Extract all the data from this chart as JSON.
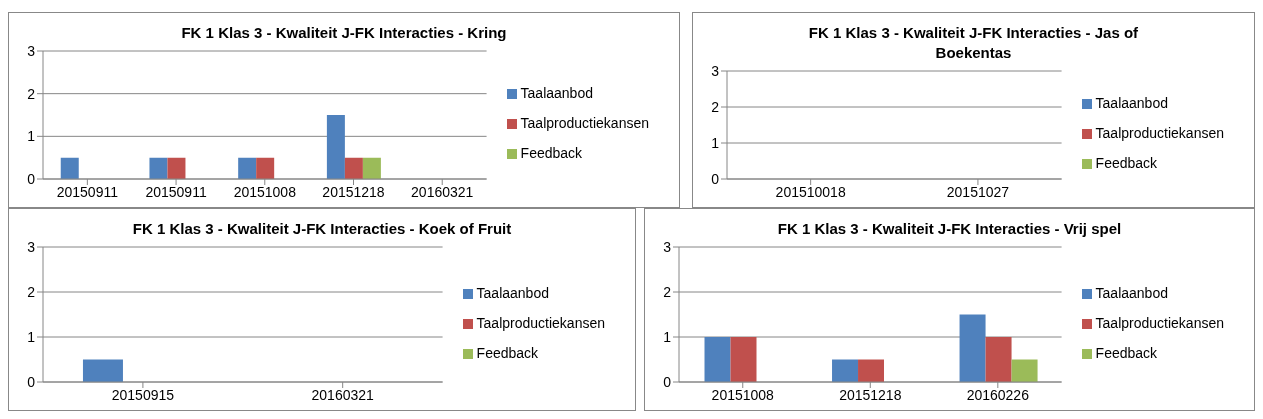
{
  "chart_data": [
    {
      "type": "bar",
      "title": "FK 1 Klas 3 - Kwaliteit J-FK Interacties - Kring",
      "categories": [
        "20150911",
        "20150911",
        "20151008",
        "20151218",
        "20160321"
      ],
      "series": [
        {
          "name": "Taalaanbod",
          "color": "#4f81bd",
          "values": [
            0.5,
            0.5,
            0.5,
            1.5,
            0
          ]
        },
        {
          "name": "Taalproductiekansen",
          "color": "#c0504d",
          "values": [
            0,
            0.5,
            0.5,
            0.5,
            0
          ]
        },
        {
          "name": "Feedback",
          "color": "#9bbb59",
          "values": [
            0,
            0,
            0,
            0.5,
            0
          ]
        }
      ],
      "ylim": [
        0,
        3
      ],
      "yticks": [
        0,
        1,
        2,
        3
      ],
      "grid": "y",
      "legend": "right"
    },
    {
      "type": "bar",
      "title": "FK 1 Klas 3 - Kwaliteit J-FK Interacties - Jas of Boekentas",
      "categories": [
        "201510018",
        "20151027"
      ],
      "series": [
        {
          "name": "Taalaanbod",
          "color": "#4f81bd",
          "values": [
            0,
            0
          ]
        },
        {
          "name": "Taalproductiekansen",
          "color": "#c0504d",
          "values": [
            0,
            0
          ]
        },
        {
          "name": "Feedback",
          "color": "#9bbb59",
          "values": [
            0,
            0
          ]
        }
      ],
      "ylim": [
        0,
        3
      ],
      "yticks": [
        0,
        1,
        2,
        3
      ],
      "grid": "y",
      "legend": "right"
    },
    {
      "type": "bar",
      "title": "FK 1 Klas 3 - Kwaliteit J-FK Interacties - Koek of Fruit",
      "categories": [
        "20150915",
        "20160321"
      ],
      "series": [
        {
          "name": "Taalaanbod",
          "color": "#4f81bd",
          "values": [
            0.5,
            0
          ]
        },
        {
          "name": "Taalproductiekansen",
          "color": "#c0504d",
          "values": [
            0,
            0
          ]
        },
        {
          "name": "Feedback",
          "color": "#9bbb59",
          "values": [
            0,
            0
          ]
        }
      ],
      "ylim": [
        0,
        3
      ],
      "yticks": [
        0,
        1,
        2,
        3
      ],
      "grid": "y",
      "legend": "right"
    },
    {
      "type": "bar",
      "title": "FK 1 Klas 3 - Kwaliteit J-FK Interacties - Vrij spel",
      "categories": [
        "20151008",
        "20151218",
        "20160226"
      ],
      "series": [
        {
          "name": "Taalaanbod",
          "color": "#4f81bd",
          "values": [
            1,
            0.5,
            1.5
          ]
        },
        {
          "name": "Taalproductiekansen",
          "color": "#c0504d",
          "values": [
            1,
            0.5,
            1
          ]
        },
        {
          "name": "Feedback",
          "color": "#9bbb59",
          "values": [
            0,
            0,
            0.5
          ]
        }
      ],
      "ylim": [
        0,
        3
      ],
      "yticks": [
        0,
        1,
        2,
        3
      ],
      "grid": "y",
      "legend": "right"
    }
  ]
}
